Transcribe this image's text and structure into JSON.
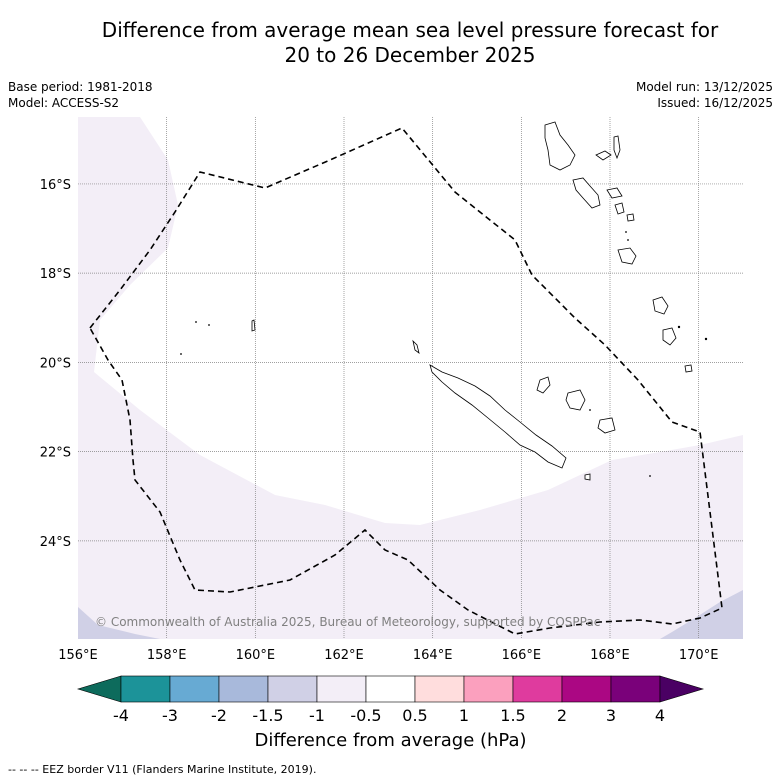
{
  "title": {
    "line1": "Difference from average mean sea level pressure forecast for",
    "line2": "20 to 26 December 2025"
  },
  "meta_left": {
    "base_period": "Base period: 1981-2018",
    "model": "Model: ACCESS-S2"
  },
  "meta_right": {
    "model_run": "Model run: 13/12/2025",
    "issued": "Issued: 16/12/2025"
  },
  "map": {
    "latitude_labels": [
      "16°S",
      "18°S",
      "20°S",
      "22°S",
      "24°S"
    ],
    "latitude_values": [
      -16,
      -18,
      -20,
      -22,
      -24
    ],
    "longitude_labels": [
      "156°E",
      "158°E",
      "160°E",
      "162°E",
      "164°E",
      "166°E",
      "168°E",
      "170°E"
    ],
    "longitude_values": [
      156,
      158,
      160,
      162,
      164,
      166,
      168,
      170
    ],
    "lon_range": [
      156,
      171
    ],
    "lat_range": [
      -26.2,
      -14.5
    ],
    "copyright": "© Commonwealth of Australia 2025, Bureau of Meteorology, supported by COSPPac",
    "colors": {
      "light_purple": "#f3eef7",
      "lavender": "#d0d0e6",
      "eez_line": "#000000",
      "grid": "#808080"
    }
  },
  "colorbar": {
    "tick_labels": [
      "-4",
      "-3",
      "-2",
      "-1.5",
      "-1",
      "-0.5",
      "0.5",
      "1",
      "1.5",
      "2",
      "3",
      "4"
    ],
    "colors": [
      "#1c9399",
      "#67aad3",
      "#a8b9db",
      "#d0d0e6",
      "#f3eef7",
      "#ffffff",
      "#ffdddd",
      "#fba0be",
      "#df3b9e",
      "#ab0783",
      "#7a017a"
    ],
    "extend_low_color": "#0d6b5c",
    "extend_high_color": "#4a0063",
    "label": "Difference from average (hPa)"
  },
  "footer": "--  --  -- EEZ border V11 (Flanders Marine Institute, 2019)."
}
